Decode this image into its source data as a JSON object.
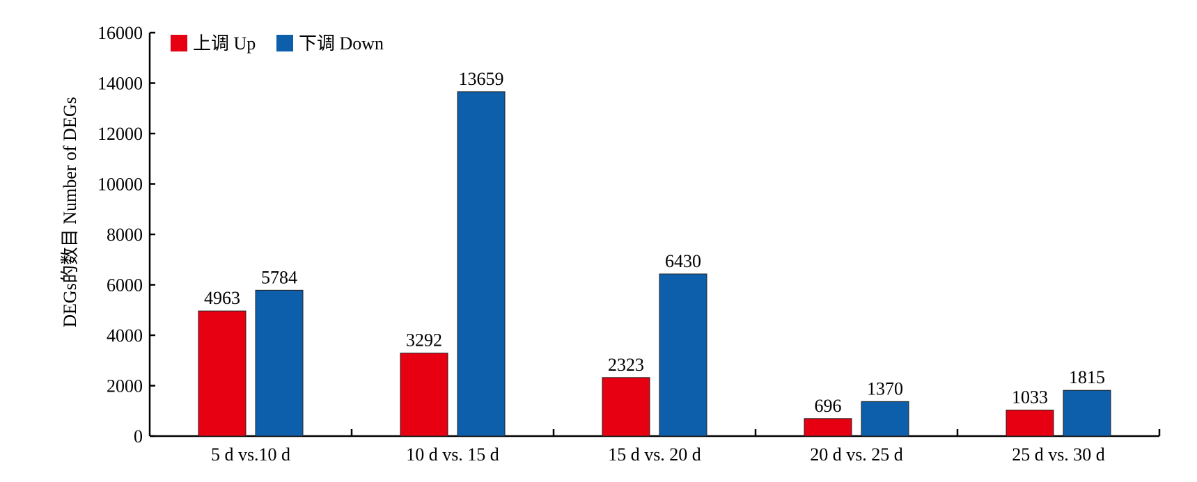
{
  "chart_data": {
    "type": "bar",
    "title": "",
    "xlabel": "",
    "ylabel": "DEGs的数目 Number of DEGs",
    "ylim": [
      0,
      16000
    ],
    "yticks": [
      0,
      2000,
      4000,
      6000,
      8000,
      10000,
      12000,
      14000,
      16000
    ],
    "categories": [
      "5 d vs.10 d",
      "10 d vs. 15 d",
      "15 d vs. 20 d",
      "20 d vs. 25 d",
      "25 d vs. 30 d"
    ],
    "series": [
      {
        "name": "上调 Up",
        "color": "#e60012",
        "values": [
          4963,
          3292,
          2323,
          696,
          1033
        ]
      },
      {
        "name": "下调 Down",
        "color": "#0e5fab",
        "values": [
          5784,
          13659,
          6430,
          1370,
          1815
        ]
      }
    ],
    "legend_position": "top-left",
    "grid": false
  }
}
